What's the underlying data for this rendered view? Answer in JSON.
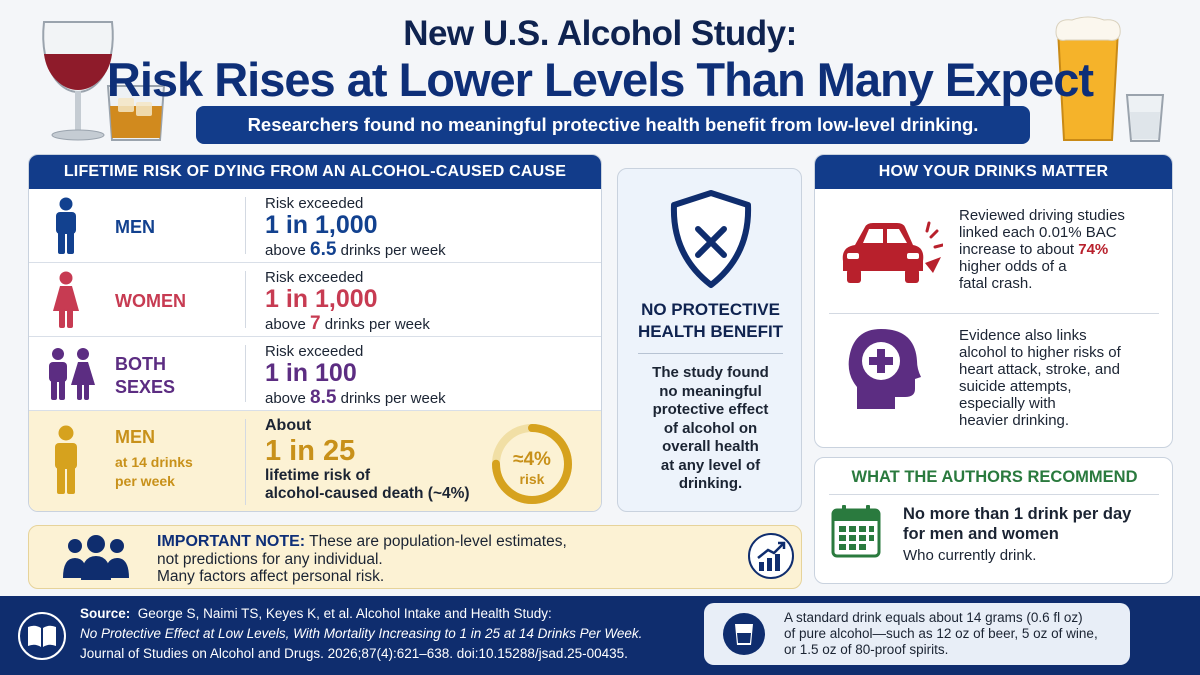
{
  "header": {
    "title_line1": "New U.S. Alcohol Study:",
    "title_line2": "Risk Rises at Lower Levels Than Many Expect",
    "subtitle": "Researchers found no meaningful protective health benefit from low-level drinking."
  },
  "lifetime_risk": {
    "heading": "LIFETIME RISK OF DYING FROM AN ALCOHOL-CAUSED CAUSE",
    "rows": [
      {
        "group": "MEN",
        "prefix": "Risk exceeded",
        "ratio": "1 in 1,000",
        "pre": "above",
        "amount": "6.5",
        "post": "drinks per week",
        "color": "#12418f"
      },
      {
        "group": "WOMEN",
        "prefix": "Risk exceeded",
        "ratio": "1 in 1,000",
        "pre": "above",
        "amount": "7",
        "post": "drinks per week",
        "color": "#c73b52"
      },
      {
        "group_line1": "BOTH",
        "group_line2": "SEXES",
        "prefix": "Risk exceeded",
        "ratio": "1 in 100",
        "pre": "above",
        "amount": "8.5",
        "post": "drinks per week",
        "color": "#5c2d82"
      }
    ],
    "highlight": {
      "group": "MEN",
      "group_sub_line1": "at 14 drinks",
      "group_sub_line2": "per week",
      "prefix": "About",
      "ratio": "1 in 25",
      "line3": "lifetime risk of",
      "line4": "alcohol-caused death (~4%)",
      "gauge_value": "≈4%",
      "gauge_label": "risk",
      "gauge_fraction": 0.75
    }
  },
  "no_benefit": {
    "heading_line1": "NO PROTECTIVE",
    "heading_line2": "HEALTH BENEFIT",
    "body": [
      "The study found",
      "no meaningful",
      "protective effect",
      "of alcohol on",
      "overall health",
      "at any level of",
      "drinking."
    ]
  },
  "drinks_matter": {
    "heading": "HOW YOUR DRINKS MATTER",
    "item1": {
      "lines": [
        "Reviewed driving studies",
        "linked each 0.01% BAC",
        "increase to about"
      ],
      "highlight": "74%",
      "lines_after": [
        "higher odds of a",
        "fatal crash."
      ]
    },
    "item2": {
      "lines": [
        "Evidence also links",
        "alcohol to higher risks of",
        "heart attack, stroke, and",
        "suicide attempts,",
        "especially with",
        "heavier drinking."
      ]
    }
  },
  "recommend": {
    "heading": "WHAT THE AUTHORS RECOMMEND",
    "bold_line1": "No more than 1 drink per day",
    "bold_line2": "for men and women",
    "sub": "Who currently drink."
  },
  "note": {
    "label": "IMPORTANT NOTE:",
    "line1": "These are population-level estimates,",
    "line2": "not predictions for any individual.",
    "line3": "Many factors affect personal risk."
  },
  "footer": {
    "source_label": "Source:",
    "source_authors": "George S, Naimi TS, Keyes K, et al. Alcohol Intake and Health Study:",
    "source_title": "No Protective Effect at Low Levels, With Mortality Increasing to 1 in 25 at 14 Drinks Per Week.",
    "source_journal": "Journal of Studies on Alcohol and Drugs. 2026;87(4):621–638. doi:10.15288/jsad.25-00435.",
    "drink_lines": [
      "A standard drink equals about 14 grams (0.6 fl oz)",
      "of pure alcohol—such as 12 oz of beer, 5 oz of wine,",
      "or 1.5 oz of 80-proof spirits."
    ]
  },
  "colors": {
    "navy": "#123c8a",
    "red": "#b8202c",
    "gold": "#d6a21e",
    "purple": "#5c2d82",
    "green": "#2a7a3e",
    "pink": "#c73b52"
  },
  "icons": [
    "wine-glass-icon",
    "whiskey-glass-icon",
    "beer-glass-icon",
    "shot-glass-icon",
    "man-icon",
    "woman-icon",
    "couple-icon",
    "shield-x-icon",
    "car-crash-icon",
    "head-medical-icon",
    "calendar-icon",
    "people-group-icon",
    "trend-chart-icon",
    "book-icon",
    "glass-icon"
  ]
}
